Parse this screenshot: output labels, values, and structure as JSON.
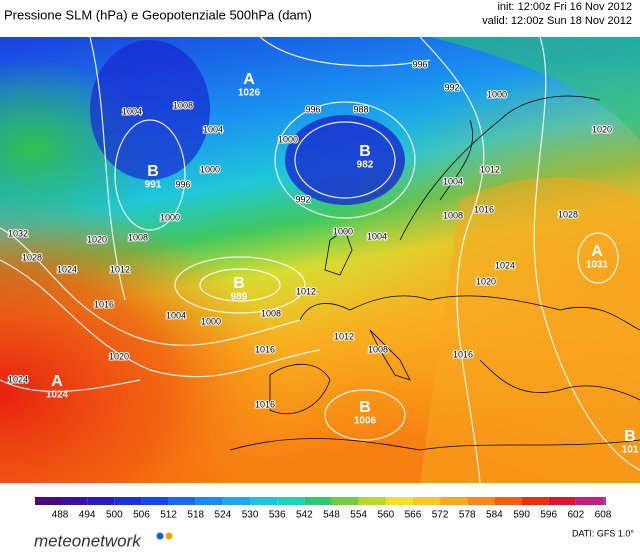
{
  "header": {
    "title": "Pressione SLM (hPa) e Geopotenziale 500hPa (dam)",
    "init": "init: 12:00z Fri 16 Nov 2012",
    "valid": "valid: 12:00z Sun 18 Nov 2012"
  },
  "map": {
    "centers": [
      {
        "letter": "A",
        "value": "1026"
      },
      {
        "letter": "B",
        "value": "991"
      },
      {
        "letter": "B",
        "value": "982"
      },
      {
        "letter": "B",
        "value": "989"
      },
      {
        "letter": "A",
        "value": "1024"
      },
      {
        "letter": "B",
        "value": "1006"
      },
      {
        "letter": "A",
        "value": "1031"
      },
      {
        "letter": "B",
        "value": "101"
      }
    ],
    "isobar_labels": [
      "996",
      "992",
      "1000",
      "1020",
      "1028",
      "1008",
      "1004",
      "1004",
      "996",
      "988",
      "1000",
      "1000",
      "996",
      "992",
      "1000",
      "1008",
      "1032",
      "1028",
      "1024",
      "1020",
      "1012",
      "1016",
      "1004",
      "1000",
      "1008",
      "1012",
      "1012",
      "1000",
      "1004",
      "1004",
      "1008",
      "1012",
      "1016",
      "1020",
      "1024",
      "1016",
      "1020",
      "1024",
      "1016",
      "1008",
      "1016"
    ]
  },
  "colorbar": {
    "ticks": [
      488,
      494,
      500,
      506,
      512,
      518,
      524,
      530,
      536,
      542,
      548,
      554,
      560,
      566,
      572,
      578,
      584,
      590,
      596,
      602,
      608
    ],
    "colors": [
      "#4b0c7a",
      "#3a10a0",
      "#2a1cc0",
      "#1c30d8",
      "#1448e8",
      "#1a68f0",
      "#1e88f2",
      "#20a8ee",
      "#20c4e0",
      "#20d2b8",
      "#30c878",
      "#70cc40",
      "#b8d830",
      "#f0e030",
      "#f8c828",
      "#f8a820",
      "#f88818",
      "#f06010",
      "#e83010",
      "#d81830",
      "#c02080",
      "#9040b8"
    ]
  },
  "footer": {
    "logo": "meteonetwork",
    "source": "DATI: GFS 1.0°"
  }
}
